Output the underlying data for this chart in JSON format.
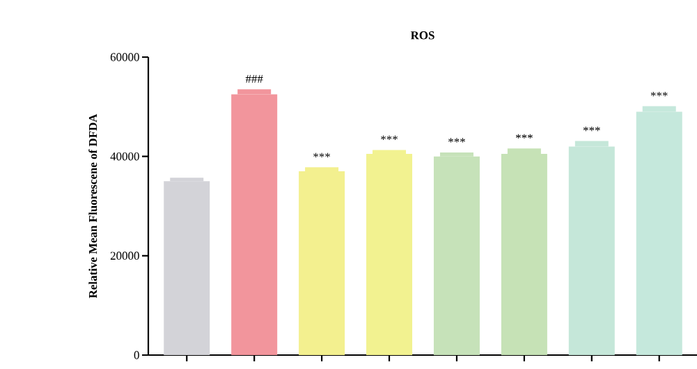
{
  "chart_data": {
    "type": "bar",
    "title": "ROS",
    "ylabel": "Relative Mean Fluorescene of DFDA",
    "categories": [
      null,
      null,
      null,
      null,
      null,
      null,
      null,
      null
    ],
    "values": [
      35000,
      52500,
      37000,
      40500,
      40000,
      40500,
      42000,
      49000
    ],
    "errors": [
      700,
      1000,
      800,
      800,
      800,
      1100,
      1100,
      1100
    ],
    "colors": [
      "#d3d3d8",
      "#f2959c",
      "#f3f08f",
      "#f2f290",
      "#c6e2b9",
      "#c6e2b6",
      "#c5e7d9",
      "#c5e8dc"
    ],
    "ylim": [
      0,
      60000
    ],
    "yticks": [
      0,
      20000,
      40000,
      60000
    ],
    "grid": false,
    "annotations": [
      "###",
      "***",
      "***",
      "***",
      "***",
      "***",
      "***"
    ]
  }
}
